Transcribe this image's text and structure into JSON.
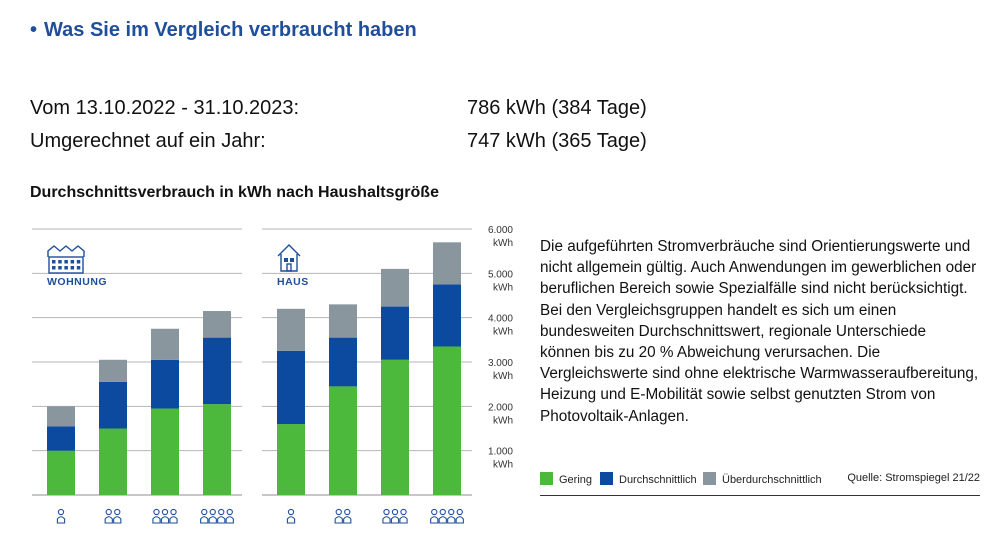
{
  "heading": "Was Sie im Vergleich verbraucht haben",
  "consumption": [
    {
      "label": "Vom 13.10.2022 - 31.10.2023:",
      "value": "786 kWh (384 Tage)"
    },
    {
      "label": "Umgerechnet auf ein Jahr:",
      "value": "747 kWh (365 Tage)"
    }
  ],
  "note": "Die aufgeführten Stromverbräuche sind Orientierungswerte und nicht allgemein gültig. Auch Anwendungen im gewerblichen oder beruflichen Bereich sowie Spezialfälle sind nicht berücksichtigt. Bei den Vergleichsgruppen handelt es sich um einen bundesweiten Durchschnittswert, regionale Unterschiede können bis zu 20 % Abweichung verursachen. Die Vergleichswerte sind ohne elektrische Warmwasseraufbereitung, Heizung und E-Mobilität sowie selbst genutzten Strom von Photovoltaik-Anlagen.",
  "colors": {
    "gering": "#4cb83c",
    "durchschnittlich": "#0b4a9e",
    "ueberdurchschnittlich": "#8a969e",
    "grid": "#b4b4b4",
    "heading": "#1f4e9a",
    "icon": "#1f4e9a"
  },
  "icons": {
    "wohnung": "apartment-building-icon",
    "haus": "house-icon",
    "person": "person-icon"
  },
  "chart_data": {
    "type": "bar",
    "stacked": true,
    "title": "Durchschnittsverbrauch in kWh nach Haushaltsgröße",
    "ylim": [
      0,
      6000
    ],
    "yticks": [
      {
        "value": 1000,
        "label": "1.000",
        "unit": "kWh"
      },
      {
        "value": 2000,
        "label": "2.000",
        "unit": "kWh"
      },
      {
        "value": 3000,
        "label": "3.000",
        "unit": "kWh"
      },
      {
        "value": 4000,
        "label": "4.000",
        "unit": "kWh"
      },
      {
        "value": 5000,
        "label": "5.000",
        "unit": "kWh"
      },
      {
        "value": 6000,
        "label": "6.000",
        "unit": "kWh"
      }
    ],
    "grid": true,
    "categories": [
      1,
      2,
      3,
      4
    ],
    "category_icon": "person-icon",
    "series_names": [
      "Gering",
      "Durchschnittlich",
      "Überdurchschnittlich"
    ],
    "panels": [
      {
        "name": "WOHNUNG",
        "icon": "apartment-building-icon",
        "series": [
          {
            "name": "Gering",
            "values": [
              1000,
              1500,
              1950,
              2050
            ]
          },
          {
            "name": "Durchschnittlich",
            "values": [
              550,
              1050,
              1100,
              1500
            ]
          },
          {
            "name": "Überdurchschnittlich",
            "values": [
              450,
              500,
              700,
              600
            ]
          }
        ]
      },
      {
        "name": "HAUS",
        "icon": "house-icon",
        "series": [
          {
            "name": "Gering",
            "values": [
              1600,
              2450,
              3050,
              3350
            ]
          },
          {
            "name": "Durchschnittlich",
            "values": [
              1650,
              1100,
              1200,
              1400
            ]
          },
          {
            "name": "Überdurchschnittlich",
            "values": [
              950,
              750,
              850,
              950
            ]
          }
        ]
      }
    ],
    "legend": "bottom",
    "source": "Quelle: Stromspiegel 21/22"
  }
}
